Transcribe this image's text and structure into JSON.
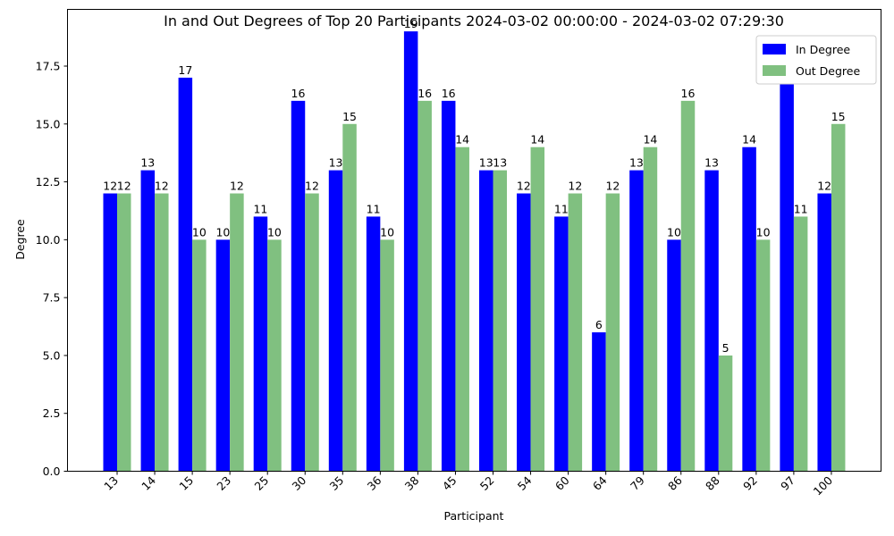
{
  "chart_data": {
    "type": "bar",
    "title": "In and Out Degrees of Top 20 Participants 2024-03-02 00:00:00 - 2024-03-02 07:29:30",
    "xlabel": "Participant",
    "ylabel": "Degree",
    "categories": [
      "13",
      "14",
      "15",
      "23",
      "25",
      "30",
      "35",
      "36",
      "38",
      "45",
      "52",
      "54",
      "60",
      "64",
      "79",
      "86",
      "88",
      "92",
      "97",
      "100"
    ],
    "series": [
      {
        "name": "In Degree",
        "color": "#0000ff",
        "values": [
          12,
          13,
          17,
          10,
          11,
          16,
          13,
          11,
          19,
          16,
          13,
          12,
          11,
          6,
          13,
          10,
          13,
          14,
          17,
          12
        ]
      },
      {
        "name": "Out Degree",
        "color": "#80c080",
        "values": [
          12,
          12,
          10,
          12,
          10,
          12,
          15,
          10,
          16,
          14,
          13,
          14,
          12,
          12,
          14,
          16,
          5,
          10,
          11,
          15
        ]
      }
    ],
    "ylim": [
      0,
      19.95
    ],
    "yticks": [
      "0.0",
      "2.5",
      "5.0",
      "7.5",
      "10.0",
      "12.5",
      "15.0",
      "17.5"
    ],
    "grid": false,
    "legend_position": "top-right"
  }
}
